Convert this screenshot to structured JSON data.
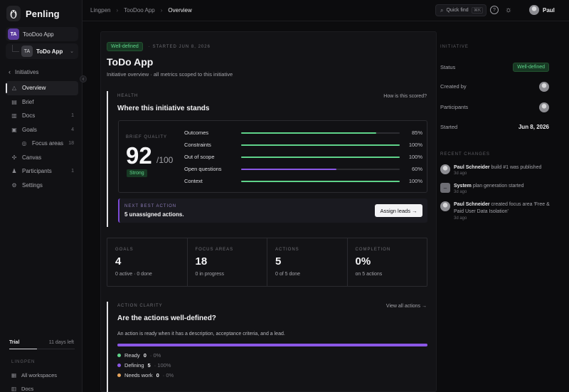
{
  "brand": {
    "name": "Penling"
  },
  "sidebar": {
    "workspace": {
      "badge": "TA",
      "label": "TooDoo App"
    },
    "app": {
      "badge": "TA",
      "label": "ToDo App"
    },
    "back_label": "Initiatives",
    "nav": [
      {
        "label": "Overview",
        "icon": "triangle-icon",
        "count": ""
      },
      {
        "label": "Brief",
        "icon": "document-icon",
        "count": ""
      },
      {
        "label": "Docs",
        "icon": "book-icon",
        "count": "1"
      },
      {
        "label": "Goals",
        "icon": "target-icon",
        "count": "4"
      },
      {
        "label": "Focus areas",
        "icon": "focus-icon",
        "count": "18"
      },
      {
        "label": "Canvas",
        "icon": "canvas-icon",
        "count": ""
      },
      {
        "label": "Participants",
        "icon": "people-icon",
        "count": "1"
      },
      {
        "label": "Settings",
        "icon": "gear-icon",
        "count": ""
      }
    ],
    "trial_label": "Trial",
    "trial_days": "11 days left",
    "trial_progress": 0.42,
    "section_label": "LINGPEN",
    "bottom_items": [
      {
        "label": "All workspaces",
        "icon": "grid-icon"
      },
      {
        "label": "Docs",
        "icon": "book-icon"
      }
    ]
  },
  "topbar": {
    "breadcrumbs": [
      "Lingpen",
      "TooDoo App",
      "Overview"
    ],
    "quick_find": "Quick find",
    "quick_find_kbd": "⌘K",
    "user_name": "Paul"
  },
  "main": {
    "status": "Well-defined",
    "started": "· STARTED JUN 8, 2026",
    "title": "ToDo App",
    "subtitle": "Initiative overview · all metrics scoped to this initiative",
    "health": {
      "label": "HEALTH",
      "title": "Where this initiative stands",
      "link": "How is this scored?",
      "brief_quality_label": "BRIEF QUALITY",
      "score": "92",
      "score_of": "/100",
      "score_tag": "Strong",
      "metrics": [
        {
          "label": "Outcomes",
          "value": "85%",
          "fraction": 0.85,
          "color": "#5fd38a"
        },
        {
          "label": "Constraints",
          "value": "100%",
          "fraction": 1.0,
          "color": "#5fd38a"
        },
        {
          "label": "Out of scope",
          "value": "100%",
          "fraction": 1.0,
          "color": "#5fd38a"
        },
        {
          "label": "Open questions",
          "value": "60%",
          "fraction": 0.6,
          "color": "#8b57e6"
        },
        {
          "label": "Context",
          "value": "100%",
          "fraction": 1.0,
          "color": "#5fd38a"
        }
      ]
    },
    "next_best_action": {
      "label": "NEXT BEST ACTION",
      "text": "5 unassigned actions.",
      "button": "Assign leads →"
    },
    "stats": [
      {
        "label": "GOALS",
        "value": "4",
        "sub": "0 active · 0 done"
      },
      {
        "label": "FOCUS AREAS",
        "value": "18",
        "sub": "0 in progress"
      },
      {
        "label": "ACTIONS",
        "value": "5",
        "sub": "0 of 5 done"
      },
      {
        "label": "COMPLETION",
        "value": "0%",
        "sub": "on 5 actions"
      }
    ],
    "clarity": {
      "label": "ACTION CLARITY",
      "title": "Are the actions well-defined?",
      "link": "View all actions →",
      "description": "An action is ready when it has a description, acceptance criteria, and a lead.",
      "fill_fraction": 1.0,
      "legend": [
        {
          "label": "Ready",
          "count": "0",
          "pct": "· 0%",
          "color": "#5fd38a"
        },
        {
          "label": "Defining",
          "count": "5",
          "pct": "· 100%",
          "color": "#8b57e6"
        },
        {
          "label": "Needs work",
          "count": "0",
          "pct": "· 0%",
          "color": "#e8a55c"
        }
      ]
    }
  },
  "right_panel": {
    "initiative_label": "INITIATIVE",
    "status_key": "Status",
    "status_value": "Well-defined",
    "created_by_key": "Created by",
    "participants_key": "Participants",
    "started_key": "Started",
    "started_value": "Jun 8, 2026",
    "changes_label": "RECENT CHANGES",
    "changes": [
      {
        "actor": "Paul Schneider",
        "text": " build #1 was published",
        "time": "3d ago",
        "kind": "user"
      },
      {
        "actor": "System",
        "text": " plan generation started",
        "time": "3d ago",
        "kind": "system"
      },
      {
        "actor": "Paul Schneider",
        "text": " created focus area 'Free & Paid User Data Isolation'",
        "time": "3d ago",
        "kind": "user"
      }
    ]
  }
}
